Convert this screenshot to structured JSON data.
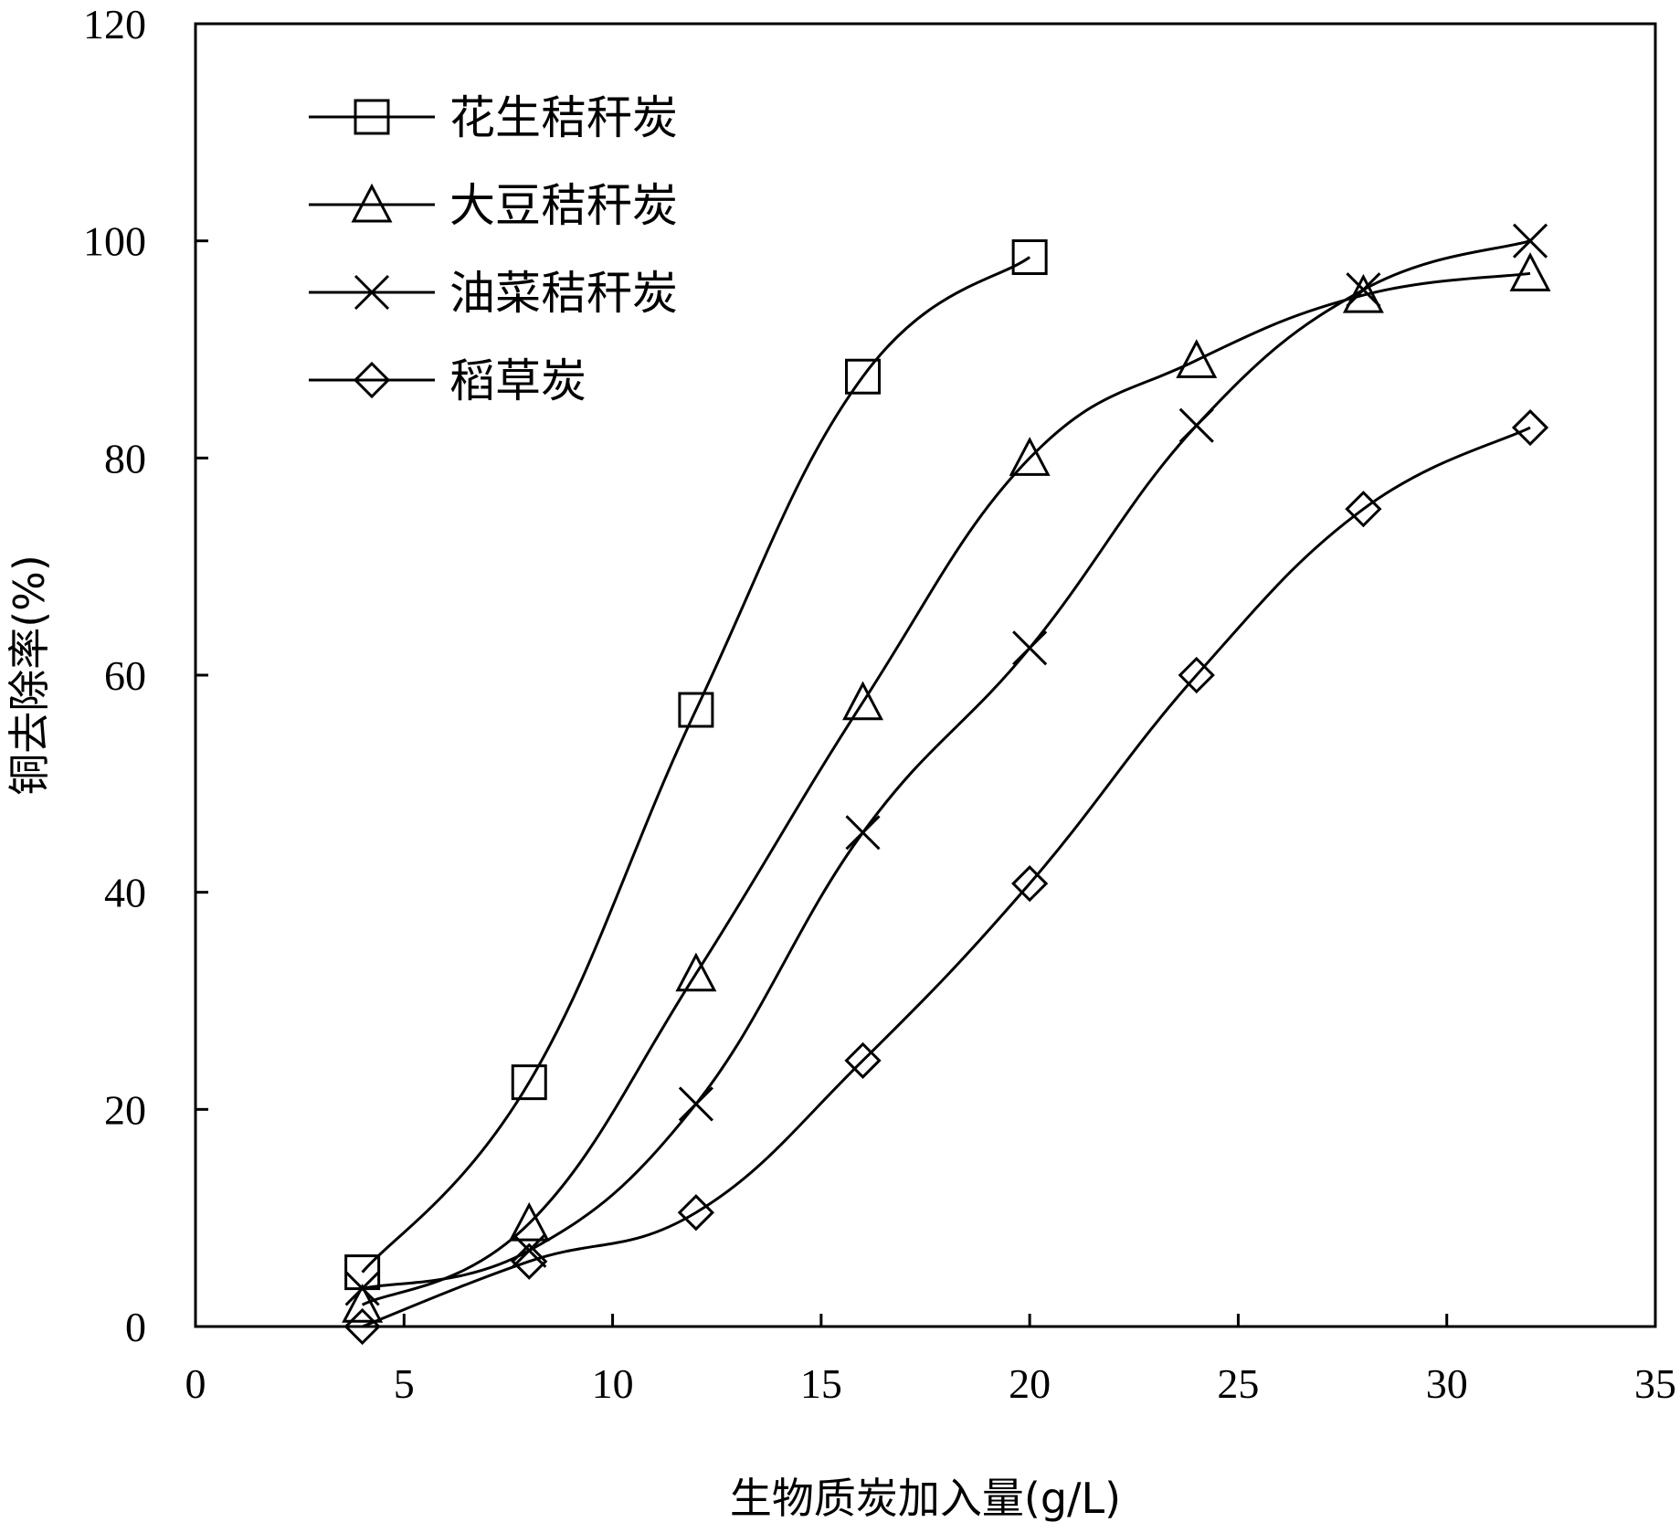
{
  "chart_data": {
    "type": "line",
    "xlabel": "生物质炭加入量(g/L)",
    "ylabel": "铜去除率(%)",
    "xlim": [
      0,
      35
    ],
    "ylim": [
      0,
      120
    ],
    "x_ticks": [
      "0",
      "5",
      "10",
      "15",
      "20",
      "25",
      "30",
      "35"
    ],
    "y_ticks": [
      "0",
      "20",
      "40",
      "60",
      "80",
      "100",
      "120"
    ],
    "grid": false,
    "legend_position": "top-left",
    "series": [
      {
        "name": "花生秸秆炭",
        "marker": "square",
        "x": [
          4,
          8,
          12,
          16,
          20
        ],
        "y": [
          5,
          22.5,
          56.8,
          87.5,
          98.5
        ]
      },
      {
        "name": "大豆秸秆炭",
        "marker": "triangle",
        "x": [
          4,
          8,
          12,
          16,
          20,
          24,
          28,
          32
        ],
        "y": [
          2,
          9.5,
          32.5,
          57.5,
          80,
          89,
          95,
          97
        ]
      },
      {
        "name": "油菜秸秆炭",
        "marker": "x",
        "x": [
          4,
          8,
          12,
          16,
          20,
          24,
          28,
          32
        ],
        "y": [
          3.5,
          7,
          20.5,
          45.5,
          62.5,
          83,
          95.5,
          100
        ]
      },
      {
        "name": "稻草炭",
        "marker": "diamond",
        "x": [
          4,
          8,
          12,
          16,
          20,
          24,
          28,
          32
        ],
        "y": [
          0,
          6,
          10.5,
          24.5,
          40.8,
          60,
          75.3,
          82.8
        ]
      }
    ]
  }
}
